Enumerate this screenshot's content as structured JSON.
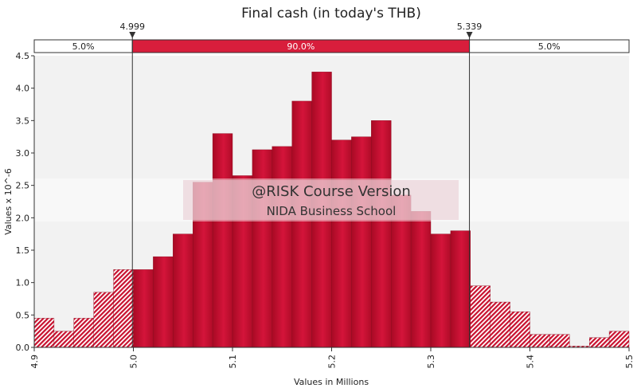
{
  "chart_data": {
    "type": "bar",
    "title": "Final cash (in today's THB)",
    "xlabel": "Values in Millions",
    "ylabel": "Values x 10^-6",
    "xlim": [
      4.9,
      5.5
    ],
    "ylim": [
      0,
      4.5
    ],
    "x_ticks": [
      "4.9",
      "5.0",
      "5.1",
      "5.2",
      "5.3",
      "5.4",
      "5.5"
    ],
    "y_ticks": [
      "0.0",
      "0.5",
      "1.0",
      "1.5",
      "2.0",
      "2.5",
      "3.0",
      "3.5",
      "4.0",
      "4.5"
    ],
    "bin_width": 0.02,
    "bin_starts": [
      4.9,
      4.92,
      4.94,
      4.96,
      4.98,
      5.0,
      5.02,
      5.04,
      5.06,
      5.08,
      5.1,
      5.12,
      5.14,
      5.16,
      5.18,
      5.2,
      5.22,
      5.24,
      5.26,
      5.28,
      5.3,
      5.32,
      5.34,
      5.36,
      5.38,
      5.4,
      5.42,
      5.44,
      5.46,
      5.48
    ],
    "values": [
      0.45,
      0.25,
      0.45,
      0.85,
      1.2,
      1.2,
      1.4,
      1.75,
      2.55,
      3.3,
      2.65,
      3.05,
      3.1,
      3.8,
      4.25,
      3.2,
      3.25,
      3.5,
      2.35,
      2.1,
      1.75,
      1.8,
      0.95,
      0.7,
      0.55,
      0.2,
      0.2,
      0.02,
      0.15,
      0.25
    ],
    "left_marker": 4.999,
    "right_marker": 5.339,
    "left_marker_label": "4.999",
    "right_marker_label": "5.339",
    "band_left": "5.0%",
    "band_middle": "90.0%",
    "band_right": "5.0%",
    "colors": {
      "bar": "#c8102e",
      "band_middle": "#d81e3c",
      "plot_bg": "#f2f2f2"
    },
    "grid": false,
    "watermark_line1": "@RISK Course Version",
    "watermark_line2": "NIDA Business School"
  }
}
